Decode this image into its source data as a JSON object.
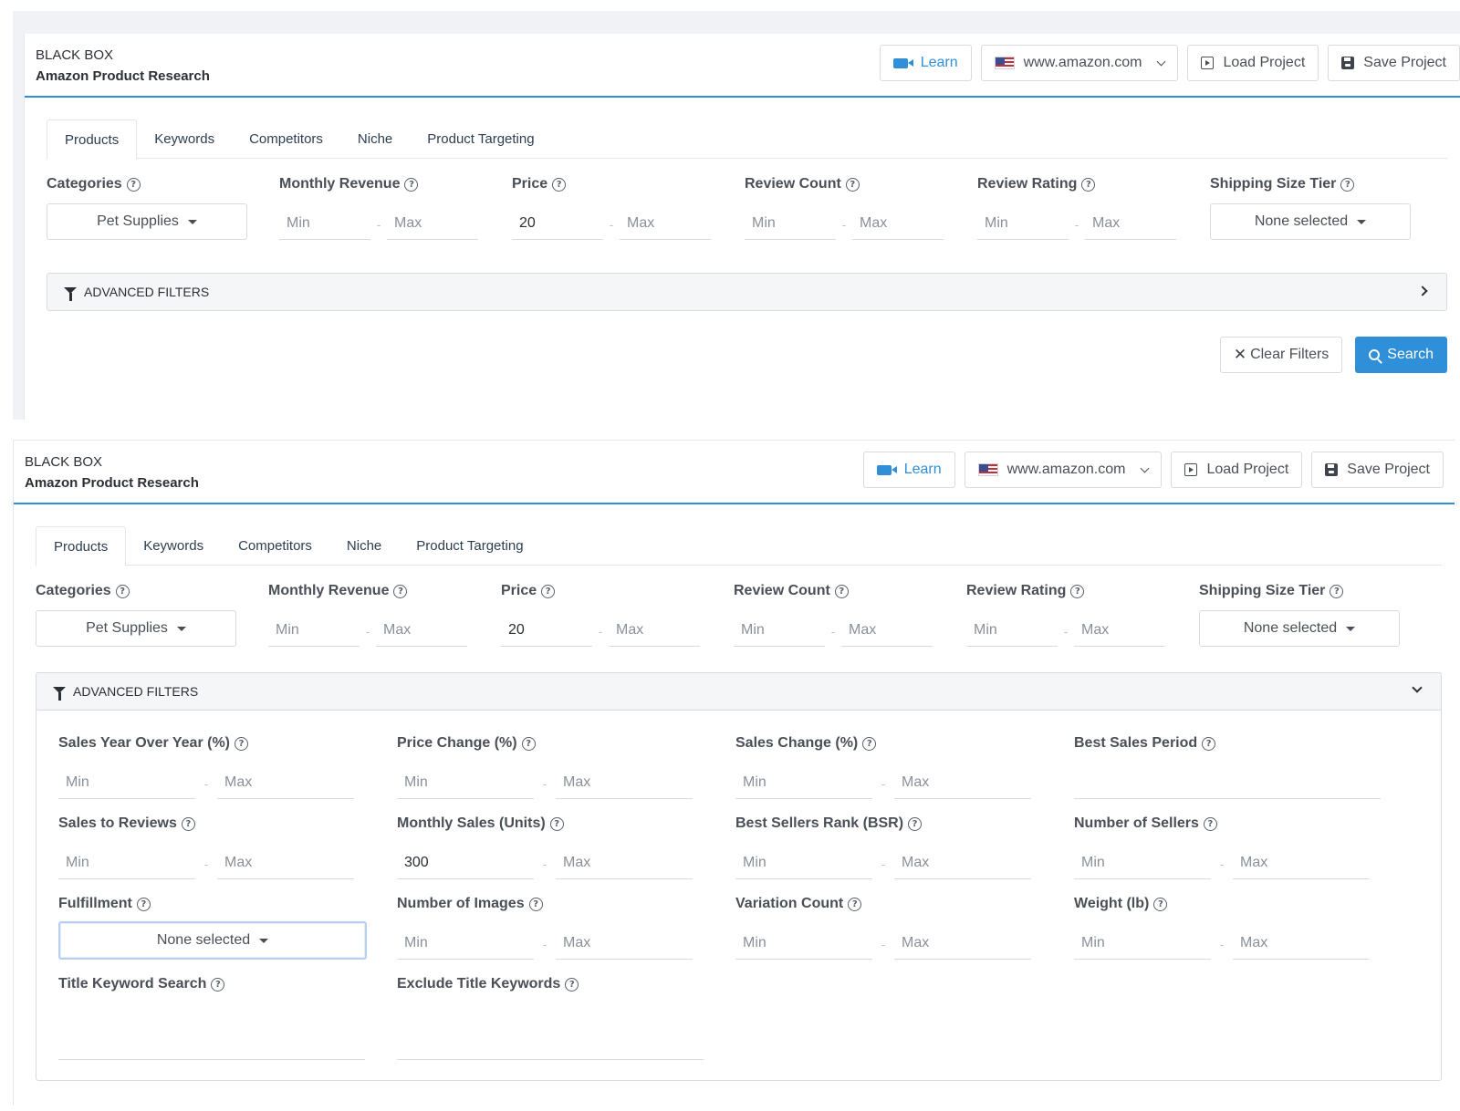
{
  "brand": {
    "title": "BLACK BOX",
    "subtitle": "Amazon Product Research"
  },
  "header": {
    "learn": "Learn",
    "marketplace": "www.amazon.com",
    "load": "Load Project",
    "save": "Save Project"
  },
  "tabs": [
    "Products",
    "Keywords",
    "Competitors",
    "Niche",
    "Product Targeting"
  ],
  "filters": {
    "categories": {
      "label": "Categories",
      "value": "Pet Supplies"
    },
    "monthly_revenue": {
      "label": "Monthly Revenue",
      "min": "Min",
      "max": "Max"
    },
    "price": {
      "label": "Price",
      "min": "20",
      "max": "Max"
    },
    "review_count": {
      "label": "Review Count",
      "min": "Min",
      "max": "Max"
    },
    "review_rating": {
      "label": "Review Rating",
      "min": "Min",
      "max": "Max"
    },
    "shipping": {
      "label": "Shipping Size Tier",
      "value": "None selected"
    }
  },
  "advanced": {
    "title": "ADVANCED FILTERS",
    "sales_yoy": {
      "label": "Sales Year Over Year (%)",
      "min": "Min",
      "max": "Max"
    },
    "price_change": {
      "label": "Price Change (%)",
      "min": "Min",
      "max": "Max"
    },
    "sales_change": {
      "label": "Sales Change (%)",
      "min": "Min",
      "max": "Max"
    },
    "best_sales_period": {
      "label": "Best Sales Period"
    },
    "sales_to_reviews": {
      "label": "Sales to Reviews",
      "min": "Min",
      "max": "Max"
    },
    "monthly_sales": {
      "label": "Monthly Sales (Units)",
      "min": "300",
      "max": "Max"
    },
    "bsr": {
      "label": "Best Sellers Rank (BSR)",
      "min": "Min",
      "max": "Max"
    },
    "num_sellers": {
      "label": "Number of Sellers",
      "min": "Min",
      "max": "Max"
    },
    "fulfillment": {
      "label": "Fulfillment",
      "value": "None selected"
    },
    "num_images": {
      "label": "Number of Images",
      "min": "Min",
      "max": "Max"
    },
    "variation_count": {
      "label": "Variation Count",
      "min": "Min",
      "max": "Max"
    },
    "weight": {
      "label": "Weight (lb)",
      "min": "Min",
      "max": "Max"
    },
    "title_keyword": {
      "label": "Title Keyword Search"
    },
    "exclude_keywords": {
      "label": "Exclude Title Keywords"
    }
  },
  "actions": {
    "clear": "Clear Filters",
    "search": "Search"
  },
  "colors": {
    "accent": "#2f8fd9",
    "text": "#3b4048",
    "border": "#d8dbe0"
  },
  "icons": {
    "learn": "video-camera-icon",
    "flag": "us-flag-icon",
    "load": "load-icon",
    "save": "floppy-disk-icon",
    "filter": "funnel-icon",
    "help": "question-circle-icon",
    "clear": "x-icon",
    "search": "magnifier-icon"
  }
}
